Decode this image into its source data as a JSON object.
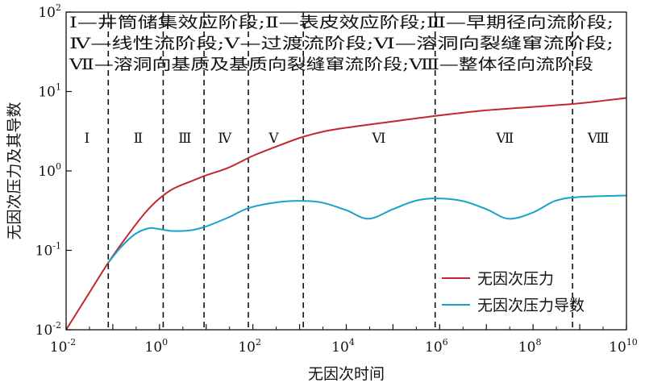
{
  "chart_data": {
    "type": "line",
    "xscale": "log",
    "yscale": "log",
    "xlabel": "无因次时间",
    "ylabel": "无因次压力及其导数",
    "xlim": [
      0.01,
      10000000000
    ],
    "ylim": [
      0.01,
      100
    ],
    "x_ticks": [
      {
        "base": "10",
        "exp": "-2"
      },
      {
        "base": "10",
        "exp": "0"
      },
      {
        "base": "10",
        "exp": "2"
      },
      {
        "base": "10",
        "exp": "4"
      },
      {
        "base": "10",
        "exp": "6"
      },
      {
        "base": "10",
        "exp": "8"
      },
      {
        "base": "10",
        "exp": "10"
      }
    ],
    "y_ticks": [
      {
        "base": "10",
        "exp": "-2"
      },
      {
        "base": "10",
        "exp": "-1"
      },
      {
        "base": "10",
        "exp": "0"
      },
      {
        "base": "10",
        "exp": "1"
      },
      {
        "base": "10",
        "exp": "2"
      }
    ],
    "notes": [
      "Ⅰ—井筒储集效应阶段;Ⅱ—表皮效应阶段;Ⅲ—早期径向流阶段;",
      "Ⅳ—线性流阶段;Ⅴ—过渡流阶段;Ⅵ—溶洞向裂缝窜流阶段;",
      "Ⅶ—溶洞向基质及基质向裂缝窜流阶段;Ⅷ—整体径向流阶段"
    ],
    "stage_boundaries": [
      0.08,
      1.2,
      9,
      80,
      1200,
      800000,
      700000000
    ],
    "stages": [
      {
        "label": "Ⅰ",
        "x": 0.028
      },
      {
        "label": "Ⅱ",
        "x": 0.35
      },
      {
        "label": "Ⅲ",
        "x": 3.5
      },
      {
        "label": "Ⅳ",
        "x": 25
      },
      {
        "label": "Ⅴ",
        "x": 280
      },
      {
        "label": "Ⅵ",
        "x": 50000
      },
      {
        "label": "Ⅶ",
        "x": 25000000
      },
      {
        "label": "Ⅷ",
        "x": 2500000000
      }
    ],
    "legend_position": "bottom-right",
    "series": [
      {
        "name": "无因次压力",
        "color": "#c0282d",
        "x": [
          0.01,
          0.03,
          0.08,
          0.2,
          0.5,
          1,
          2,
          5,
          10,
          30,
          100,
          300,
          1000,
          3000,
          10000,
          100000,
          1000000,
          10000000,
          100000000,
          1000000000,
          10000000000
        ],
        "y": [
          0.01,
          0.028,
          0.07,
          0.15,
          0.3,
          0.45,
          0.6,
          0.75,
          0.88,
          1.1,
          1.55,
          2.0,
          2.6,
          3.1,
          3.5,
          4.2,
          5.0,
          5.8,
          6.4,
          7.1,
          8.3
        ]
      },
      {
        "name": "无因次压力导数",
        "color": "#1aa0cc",
        "x": [
          0.08,
          0.15,
          0.3,
          0.6,
          1,
          2,
          5,
          10,
          30,
          80,
          300,
          1000,
          3000,
          10000,
          30000,
          100000,
          300000,
          800000,
          3000000,
          10000000,
          30000000,
          100000000,
          300000000,
          1000000000,
          10000000000
        ],
        "y": [
          0.07,
          0.11,
          0.16,
          0.19,
          0.185,
          0.175,
          0.18,
          0.2,
          0.26,
          0.34,
          0.4,
          0.42,
          0.4,
          0.32,
          0.25,
          0.33,
          0.42,
          0.45,
          0.42,
          0.33,
          0.25,
          0.3,
          0.42,
          0.47,
          0.49
        ]
      }
    ]
  }
}
